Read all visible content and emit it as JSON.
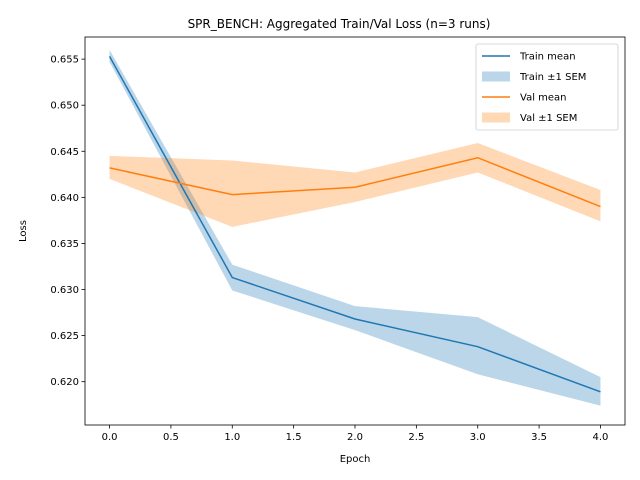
{
  "chart_data": {
    "type": "line",
    "title": "SPR_BENCH: Aggregated Train/Val Loss (n=3 runs)",
    "xlabel": "Epoch",
    "ylabel": "Loss",
    "x": [
      0,
      1,
      2,
      3,
      4
    ],
    "xlim": [
      -0.2,
      4.2
    ],
    "ylim": [
      0.6153,
      0.6574
    ],
    "xticks": [
      "0.0",
      "0.5",
      "1.0",
      "1.5",
      "2.0",
      "2.5",
      "3.0",
      "3.5",
      "4.0"
    ],
    "yticks": [
      "0.620",
      "0.625",
      "0.630",
      "0.635",
      "0.640",
      "0.645",
      "0.650",
      "0.655"
    ],
    "legend_position": "upper right",
    "series": [
      {
        "name": "Train mean",
        "band_name": "Train ±1 SEM",
        "color": "#1f77b4",
        "band_color": "#1f77b4",
        "values": [
          0.6553,
          0.6313,
          0.6268,
          0.6238,
          0.6189
        ],
        "lower": [
          0.6547,
          0.6299,
          0.6256,
          0.6208,
          0.6174
        ],
        "upper": [
          0.656,
          0.6327,
          0.6282,
          0.627,
          0.6205
        ]
      },
      {
        "name": "Val mean",
        "band_name": "Val ±1 SEM",
        "color": "#ff7f0e",
        "band_color": "#ff7f0e",
        "values": [
          0.6432,
          0.6403,
          0.6411,
          0.6443,
          0.639
        ],
        "lower": [
          0.642,
          0.6368,
          0.6395,
          0.6427,
          0.6374
        ],
        "upper": [
          0.6445,
          0.644,
          0.6427,
          0.6459,
          0.6408
        ]
      }
    ]
  }
}
